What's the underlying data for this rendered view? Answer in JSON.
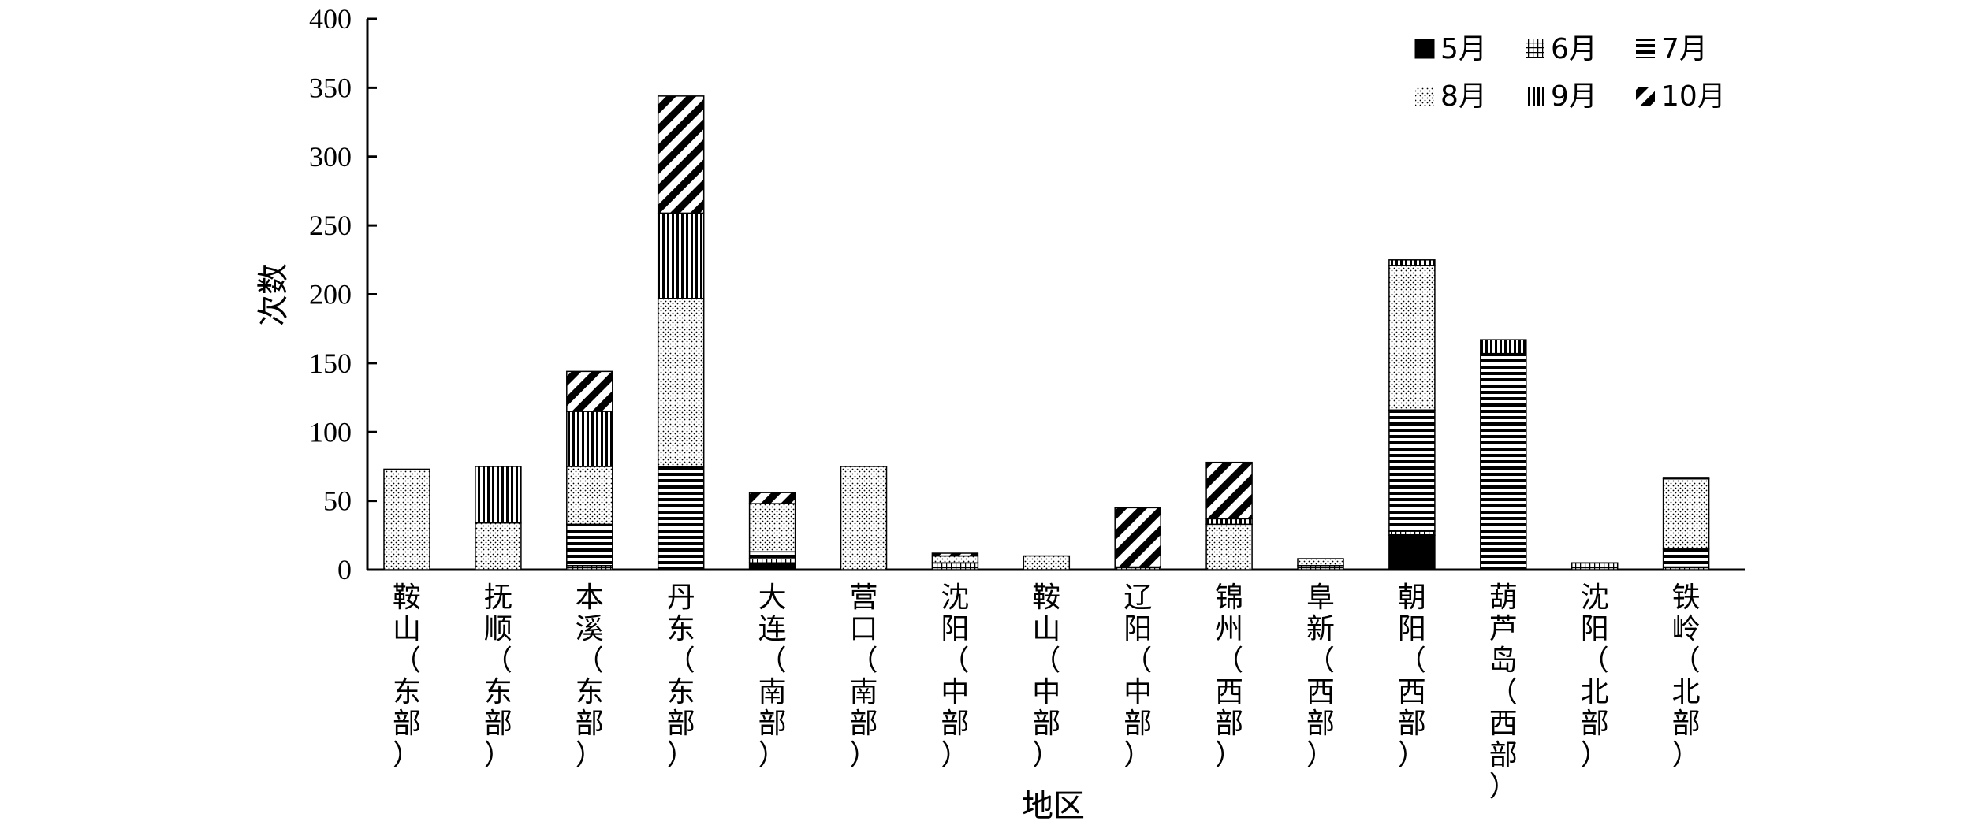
{
  "chart_data": {
    "type": "bar",
    "stacked": true,
    "xlabel": "地区",
    "ylabel": "次数",
    "ylim": [
      0,
      400
    ],
    "yticks": [
      0,
      50,
      100,
      150,
      200,
      250,
      300,
      350,
      400
    ],
    "legend_position": "top-right",
    "grid": false,
    "categories": [
      [
        "鞍山",
        "（东部）"
      ],
      [
        "抚顺",
        "（东部）"
      ],
      [
        "本溪",
        "（东部）"
      ],
      [
        "丹东",
        "（东部）"
      ],
      [
        "大连",
        "（南部）"
      ],
      [
        "营口",
        "（南部）"
      ],
      [
        "沈阳",
        "（中部）"
      ],
      [
        "鞍山",
        "（中部）"
      ],
      [
        "辽阳",
        "（中部）"
      ],
      [
        "锦州",
        "（西部）"
      ],
      [
        "阜新",
        "（西部）"
      ],
      [
        "朝阳",
        "（西部）"
      ],
      [
        "葫芦岛",
        "（西部）"
      ],
      [
        "沈阳",
        "（北部）"
      ],
      [
        "铁岭",
        "（北部）"
      ]
    ],
    "series": [
      {
        "name": "5月",
        "pattern": "solid",
        "values": [
          0,
          0,
          0,
          0,
          5,
          0,
          0,
          0,
          0,
          0,
          0,
          25,
          0,
          0,
          0
        ]
      },
      {
        "name": "6月",
        "pattern": "grid",
        "values": [
          0,
          0,
          3,
          0,
          3,
          0,
          5,
          0,
          2,
          0,
          3,
          3,
          0,
          5,
          2
        ]
      },
      {
        "name": "7月",
        "pattern": "hlines",
        "values": [
          0,
          0,
          30,
          75,
          5,
          0,
          0,
          0,
          0,
          0,
          0,
          88,
          157,
          0,
          13
        ]
      },
      {
        "name": "8月",
        "pattern": "dots",
        "values": [
          73,
          34,
          42,
          122,
          35,
          75,
          5,
          10,
          0,
          33,
          5,
          105,
          0,
          0,
          51
        ]
      },
      {
        "name": "9月",
        "pattern": "vlines",
        "values": [
          0,
          41,
          40,
          62,
          0,
          0,
          0,
          0,
          0,
          4,
          0,
          4,
          10,
          0,
          1
        ]
      },
      {
        "name": "10月",
        "pattern": "diag",
        "values": [
          0,
          0,
          29,
          85,
          8,
          0,
          2,
          0,
          43,
          41,
          0,
          0,
          0,
          0,
          0
        ]
      }
    ]
  }
}
